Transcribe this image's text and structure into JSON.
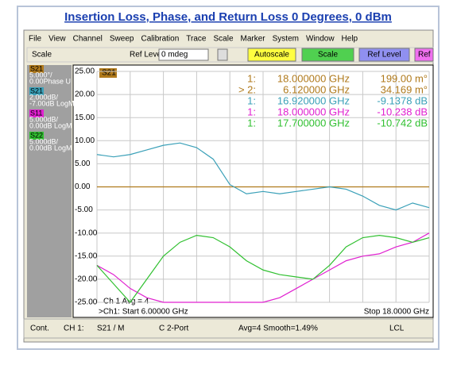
{
  "ui": {
    "title": "Insertion Loss, Phase, and Return Loss 0 Degrees, 0 dBm",
    "menu": [
      "File",
      "View",
      "Channel",
      "Sweep",
      "Calibration",
      "Trace",
      "Scale",
      "Marker",
      "System",
      "Window",
      "Help"
    ],
    "toolbar": {
      "label": "Scale",
      "field_label": "Ref Level",
      "field_value": "0 mdeg",
      "buttons": [
        "Autoscale",
        "Scale",
        "Ref Level",
        "Ref"
      ]
    },
    "plot_label": "S21",
    "markers": [
      {
        "id": "1:",
        "freq": "18.000000 GHz",
        "value": "199.00 m°"
      },
      {
        "id": "> 2:",
        "freq": "6.120000 GHz",
        "value": "34.169 m°"
      },
      {
        "id": "1:",
        "freq": "16.920000 GHz",
        "value": "-9.1378 dB"
      },
      {
        "id": "1:",
        "freq": "18.000000 GHz",
        "value": "-10.238 dB"
      },
      {
        "id": "1:",
        "freq": "17.700000 GHz",
        "value": "-10.742 dB"
      }
    ],
    "avg_label": "Ch 1 Avg = 4",
    "start_label": ">Ch1: Start 6.00000 GHz",
    "stop_label": "Stop 18.0000 GHz",
    "status": [
      "Cont.",
      "CH 1:",
      "S21 / M",
      "C 2-Port",
      "Avg=4 Smooth=1.49%",
      "LCL"
    ]
  },
  "chart_data": {
    "type": "line",
    "x": [
      6,
      6.6,
      7.2,
      7.8,
      8.4,
      9,
      9.6,
      10.2,
      10.8,
      11.4,
      12,
      12.6,
      13.2,
      13.8,
      14.4,
      15,
      15.6,
      16.2,
      16.8,
      17.4,
      18
    ],
    "xlim": [
      6,
      18
    ],
    "xticks": [
      6,
      7.2,
      8.4,
      9.6,
      10.8,
      12,
      13.2,
      14.4,
      15.6,
      16.8,
      18
    ],
    "ylim": [
      -25,
      25
    ],
    "yticks": [
      {
        "value": 25,
        "label": "25.00"
      },
      {
        "value": 20,
        "label": "20.00"
      },
      {
        "value": 15,
        "label": "15.00"
      },
      {
        "value": 10,
        "label": "10.00"
      },
      {
        "value": 5,
        "label": "5.00"
      },
      {
        "value": 0,
        "label": "0.00"
      },
      {
        "value": -5,
        "label": "-5.00"
      },
      {
        "value": -10,
        "label": "-10.00"
      },
      {
        "value": -15,
        "label": "-15.00"
      },
      {
        "value": -20,
        "label": "-20.00"
      },
      {
        "value": -25,
        "label": "-25.00"
      }
    ],
    "grid": true,
    "series": [
      {
        "name": "S21",
        "scale_label": "5.000°/",
        "ref_label": "0.00Phase U",
        "color": "#b07a1c",
        "values": [
          0,
          0,
          0,
          0,
          0,
          0,
          0,
          0,
          0,
          0,
          0,
          0,
          0,
          0,
          0,
          0,
          0,
          0,
          0,
          0,
          0
        ]
      },
      {
        "name": "S21",
        "scale_label": "2.000dB/",
        "ref_label": "-7.00dB LogM",
        "color": "#3aa0b8",
        "values": [
          7,
          6.5,
          7,
          8,
          9,
          9.5,
          8.5,
          6,
          0.5,
          -1.5,
          -1,
          -1.5,
          -1,
          -0.5,
          0,
          -0.5,
          -2,
          -4,
          -5,
          -3.5,
          -4.5
        ]
      },
      {
        "name": "S11",
        "scale_label": "5.000dB/",
        "ref_label": "0.00dB LogM",
        "color": "#e020d0",
        "values": [
          -17,
          -19,
          -22,
          -24,
          -25,
          -25,
          -25,
          -25,
          -25,
          -25,
          -25,
          -24,
          -22,
          -20,
          -18,
          -16,
          -15,
          -14.5,
          -13,
          -12,
          -10
        ]
      },
      {
        "name": "S22",
        "scale_label": "5.000dB/",
        "ref_label": "0.00dB LogM",
        "color": "#30c030",
        "values": [
          -17,
          -21,
          -25,
          -20,
          -15,
          -12,
          -10.5,
          -11,
          -13,
          -16,
          -18,
          -19,
          -19.5,
          -20,
          -17,
          -13,
          -11,
          -10.5,
          -11,
          -12,
          -11
        ]
      }
    ]
  }
}
